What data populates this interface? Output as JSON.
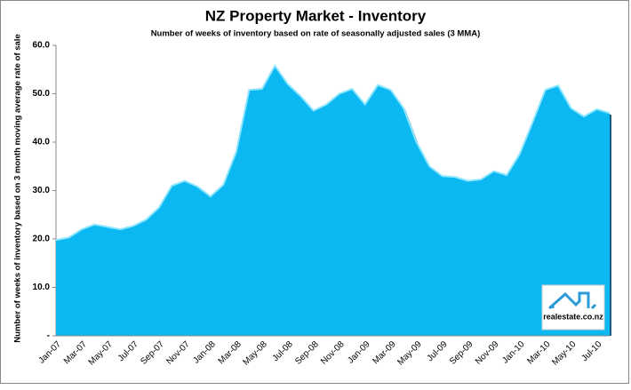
{
  "chart_data": {
    "type": "area",
    "title": "NZ Property Market - Inventory",
    "subtitle": "Number of weeks of inventory based on rate of seasonally adjusted sales (3 MMA)",
    "y_label": "Number of weeks of inventory based on 3 month moving average rate of sale",
    "logo_text": "realestate.co.nz",
    "categories": [
      "Jan-07",
      null,
      "Mar-07",
      null,
      "May-07",
      null,
      "Jul-07",
      null,
      "Sep-07",
      null,
      "Nov-07",
      null,
      "Jan-08",
      null,
      "Mar-08",
      null,
      "May-08",
      null,
      "Jul-08",
      null,
      "Sep-08",
      null,
      "Nov-08",
      null,
      "Jan-09",
      null,
      "Mar-09",
      null,
      "May-09",
      null,
      "Jul-09",
      null,
      "Sep-09",
      null,
      "Nov-09",
      null,
      "Jan-10",
      null,
      "Mar-10",
      null,
      "May-10",
      null,
      "Jul-10",
      null
    ],
    "values": [
      19.8,
      20.3,
      22,
      23,
      22.5,
      22,
      22.7,
      24,
      26.5,
      31,
      32,
      30.8,
      28.8,
      31.2,
      38,
      50.8,
      51,
      55.8,
      52,
      49.5,
      46.5,
      47.8,
      50,
      51,
      47.8,
      51.8,
      50.8,
      47,
      40,
      35,
      33,
      32.8,
      32,
      32.3,
      34,
      33.2,
      37.5,
      44,
      50.8,
      51.7,
      47,
      45.3,
      46.8,
      46
    ],
    "color": "#0cb8f2",
    "ylim": [
      0,
      60
    ],
    "yticks": [
      {
        "value": 0,
        "label": "-"
      },
      {
        "value": 10,
        "label": "10.0"
      },
      {
        "value": 20,
        "label": "20.0"
      },
      {
        "value": 30,
        "label": "30.0"
      },
      {
        "value": 40,
        "label": "40.0"
      },
      {
        "value": 50,
        "label": "50.0"
      },
      {
        "value": 60,
        "label": "60.0"
      }
    ]
  }
}
